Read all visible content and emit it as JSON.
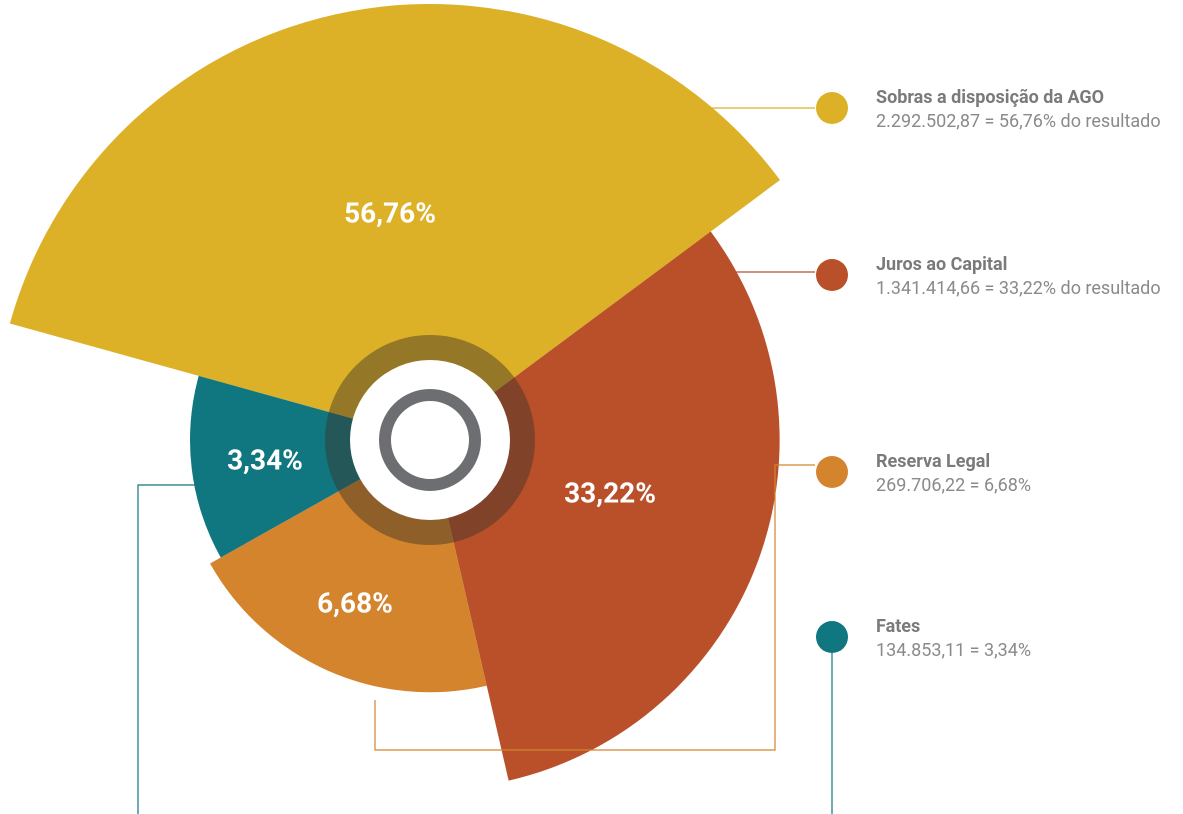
{
  "chart_data": {
    "type": "rose",
    "categories": [
      "Sobras a disposição da AGO",
      "Juros ao Capital",
      "Reserva Legal",
      "Fates"
    ],
    "descriptions": [
      "2.292.502,87 = 56,76% do resultado",
      "1.341.414,66  = 33,22% do resultado",
      "269.706,22 = 6,68%",
      "134.853,11 = 3,34%"
    ],
    "values": [
      56.76,
      33.22,
      6.68,
      3.34
    ],
    "value_labels": [
      "56,76%",
      "33,22%",
      "6,68%",
      "3,34%"
    ],
    "colors": [
      "#dcb027",
      "#b9502a",
      "#d3842c",
      "#107680"
    ]
  }
}
